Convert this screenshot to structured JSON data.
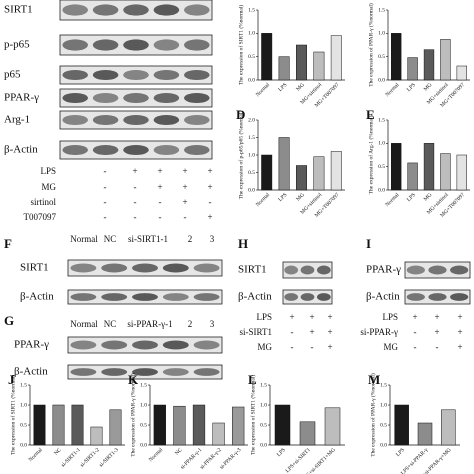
{
  "blots": [
    {
      "rows": [
        "SIRT1",
        "p-p65",
        "p65",
        "PPAR-γ",
        "Arg-1",
        "β-Actin"
      ],
      "conditions": [
        {
          "name": "LPS",
          "signs": [
            "-",
            "+",
            "+",
            "+",
            "+"
          ]
        },
        {
          "name": "MG",
          "signs": [
            "-",
            "-",
            "+",
            "+",
            "+"
          ]
        },
        {
          "name": "sirtinol",
          "signs": [
            "-",
            "-",
            "-",
            "+",
            "-"
          ]
        },
        {
          "name": "T007097",
          "signs": [
            "-",
            "-",
            "-",
            "-",
            "+"
          ]
        }
      ]
    },
    {
      "panel": "F",
      "lanes": [
        "Normal",
        "NC",
        "si-SIRT1-1",
        "2",
        "3"
      ],
      "rows": [
        "SIRT1",
        "β-Actin"
      ]
    },
    {
      "panel": "G",
      "lanes": [
        "Normal",
        "NC",
        "si-PPAR-γ-1",
        "2",
        "3"
      ],
      "rows": [
        "PPAR-γ",
        "β-Actin"
      ]
    },
    {
      "panel": "H",
      "rows": [
        "SIRT1",
        "β-Actin"
      ],
      "conditions": [
        {
          "name": "LPS",
          "signs": [
            "+",
            "+",
            "+"
          ]
        },
        {
          "name": "si-SIRT1",
          "signs": [
            "-",
            "+",
            "+"
          ]
        },
        {
          "name": "MG",
          "signs": [
            "-",
            "-",
            "+"
          ]
        }
      ]
    },
    {
      "panel": "I",
      "rows": [
        "PPAR-γ",
        "β-Actin"
      ],
      "conditions": [
        {
          "name": "LPS",
          "signs": [
            "+",
            "+",
            "+"
          ]
        },
        {
          "name": "si-PPAR-γ",
          "signs": [
            "-",
            "+",
            "+"
          ]
        },
        {
          "name": "MG",
          "signs": [
            "-",
            "-",
            "+"
          ]
        }
      ]
    }
  ],
  "chart_data": [
    {
      "type": "bar",
      "ylabel": "The expression of SIRT1 (%normal)",
      "categories": [
        "Normal",
        "LPS",
        "MG",
        "MG+sirtinol",
        "MG+T007097"
      ],
      "values": [
        1.0,
        0.5,
        0.75,
        0.6,
        0.95
      ],
      "colors": [
        "#1a1a1a",
        "#8c8c8c",
        "#5a5a5a",
        "#bdbdbd",
        "#e3e3e3"
      ],
      "ylim": [
        0,
        1.5
      ],
      "yticks": [
        {
          "value": 0,
          "label": "0.0"
        },
        {
          "value": 0.5,
          "label": "0.5"
        },
        {
          "value": 1,
          "label": "1.0"
        },
        {
          "value": 1.5,
          "label": "1.5"
        }
      ]
    },
    {
      "type": "bar",
      "ylabel": "The expression of PPAR-γ (%normal)",
      "categories": [
        "Normal",
        "LPS",
        "MG",
        "MG+sirtinol",
        "MG+T007097"
      ],
      "values": [
        1.0,
        0.48,
        0.65,
        0.87,
        0.3
      ],
      "colors": [
        "#1a1a1a",
        "#8c8c8c",
        "#5a5a5a",
        "#bdbdbd",
        "#e3e3e3"
      ],
      "ylim": [
        0,
        1.5
      ],
      "yticks": [
        {
          "value": 0,
          "label": "0.0"
        },
        {
          "value": 0.5,
          "label": "0.5"
        },
        {
          "value": 1,
          "label": "1.0"
        },
        {
          "value": 1.5,
          "label": "1.5"
        }
      ]
    },
    {
      "type": "bar",
      "panel": "D",
      "ylabel": "The expression of p-p65/p65 (%normal)",
      "categories": [
        "Normal",
        "LPS",
        "MG",
        "MG+sirtinol",
        "MG+T007097"
      ],
      "values": [
        1.0,
        1.5,
        0.7,
        0.95,
        1.1
      ],
      "colors": [
        "#1a1a1a",
        "#8c8c8c",
        "#5a5a5a",
        "#bdbdbd",
        "#e3e3e3"
      ],
      "ylim": [
        0,
        2
      ],
      "yticks": [
        {
          "value": 0,
          "label": "0.0"
        },
        {
          "value": 0.5,
          "label": "0.5"
        },
        {
          "value": 1,
          "label": "1.0"
        },
        {
          "value": 1.5,
          "label": "1.5"
        },
        {
          "value": 2,
          "label": "2.0"
        }
      ]
    },
    {
      "type": "bar",
      "panel": "E",
      "ylabel": "The expression of Arg-1 (%normal)",
      "categories": [
        "Normal",
        "LPS",
        "MG",
        "MG+sirtinol",
        "MG+T007097"
      ],
      "values": [
        1.0,
        0.58,
        1.0,
        0.78,
        0.75
      ],
      "colors": [
        "#1a1a1a",
        "#8c8c8c",
        "#5a5a5a",
        "#bdbdbd",
        "#e3e3e3"
      ],
      "ylim": [
        0,
        1.5
      ],
      "yticks": [
        {
          "value": 0,
          "label": "0.0"
        },
        {
          "value": 0.5,
          "label": "0.5"
        },
        {
          "value": 1,
          "label": "1.0"
        },
        {
          "value": 1.5,
          "label": "1.5"
        }
      ]
    },
    {
      "type": "bar",
      "panel": "J",
      "ylabel": "The expression of SIRT1 (%normal)",
      "categories": [
        "Normal",
        "NC",
        "si-SIRT1-1",
        "si-SIRT1-2",
        "si-SIRT1-3"
      ],
      "values": [
        1.0,
        1.0,
        1.0,
        0.45,
        0.88
      ],
      "colors": [
        "#1a1a1a",
        "#8c8c8c",
        "#5a5a5a",
        "#bdbdbd",
        "#9a9a9a"
      ],
      "ylim": [
        0,
        1.5
      ],
      "yticks": [
        {
          "value": 0,
          "label": "0.0"
        },
        {
          "value": 0.5,
          "label": "0.5"
        },
        {
          "value": 1,
          "label": "1.0"
        },
        {
          "value": 1.5,
          "label": "1.5"
        }
      ]
    },
    {
      "type": "bar",
      "panel": "K",
      "ylabel": "The expression of PPAR-γ (%normal)",
      "categories": [
        "Normal",
        "NC",
        "si-PPAR-γ-1",
        "si-PPAR-γ-2",
        "si-PPAR-γ-3"
      ],
      "values": [
        1.0,
        0.97,
        1.0,
        0.55,
        0.95
      ],
      "colors": [
        "#1a1a1a",
        "#8c8c8c",
        "#5a5a5a",
        "#bdbdbd",
        "#9a9a9a"
      ],
      "ylim": [
        0,
        1.5
      ],
      "yticks": [
        {
          "value": 0,
          "label": "0.0"
        },
        {
          "value": 0.5,
          "label": "0.5"
        },
        {
          "value": 1,
          "label": "1.0"
        },
        {
          "value": 1.5,
          "label": "1.5"
        }
      ]
    },
    {
      "type": "bar",
      "panel": "L",
      "ylabel": "The expression of SIRT1 (%normal)",
      "categories": [
        "LPS",
        "LPS+si-SIRT1",
        "LPS+si-SIRT1+MG"
      ],
      "values": [
        1.0,
        0.58,
        0.93
      ],
      "colors": [
        "#1a1a1a",
        "#8c8c8c",
        "#bdbdbd"
      ],
      "ylim": [
        0,
        1.5
      ],
      "yticks": [
        {
          "value": 0,
          "label": "0.0"
        },
        {
          "value": 0.5,
          "label": "0.5"
        },
        {
          "value": 1,
          "label": "1.0"
        },
        {
          "value": 1.5,
          "label": "1.5"
        }
      ]
    },
    {
      "type": "bar",
      "panel": "M",
      "ylabel": "The expression of PPAR-γ (%normal)",
      "categories": [
        "LPS",
        "LPS+si-PPAR-γ",
        "LPS+si-PPAR-γ+MG"
      ],
      "values": [
        1.0,
        0.55,
        0.88
      ],
      "colors": [
        "#1a1a1a",
        "#8c8c8c",
        "#bdbdbd"
      ],
      "ylim": [
        0,
        1.5
      ],
      "yticks": [
        {
          "value": 0,
          "label": "0.0"
        },
        {
          "value": 0.5,
          "label": "0.5"
        },
        {
          "value": 1,
          "label": "1.0"
        },
        {
          "value": 1.5,
          "label": "1.5"
        }
      ]
    }
  ]
}
